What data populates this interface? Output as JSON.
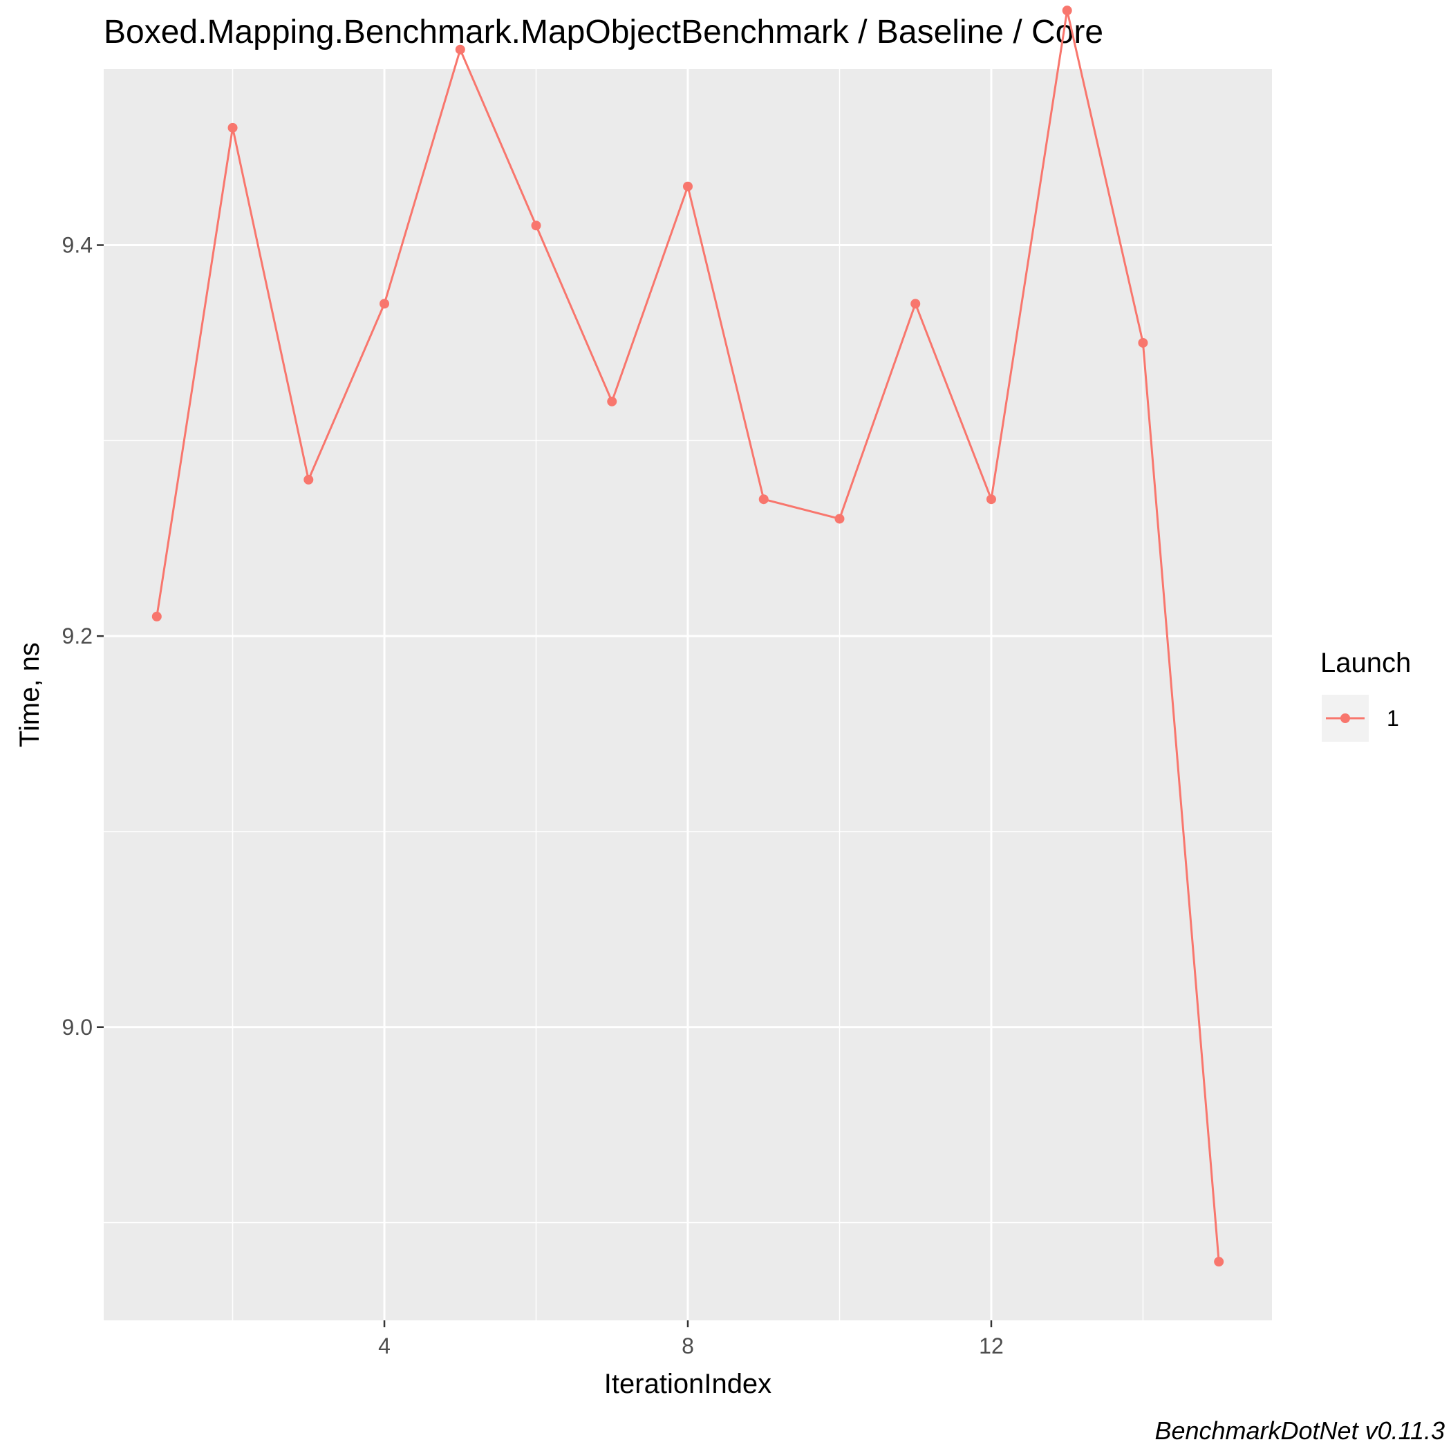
{
  "chart_data": {
    "type": "line",
    "title": "Boxed.Mapping.Benchmark.MapObjectBenchmark / Baseline / Core",
    "xlabel": "IterationIndex",
    "ylabel": "Time, ns",
    "xlim": [
      0.3,
      15.7
    ],
    "ylim": [
      8.85,
      9.49
    ],
    "x_ticks": [
      4,
      8,
      12
    ],
    "x_tick_labels": [
      "4",
      "8",
      "12"
    ],
    "x_minor_ticks": [
      2,
      6,
      10,
      14
    ],
    "y_ticks": [
      9.0,
      9.2,
      9.4
    ],
    "y_tick_labels": [
      "9.0",
      "9.2",
      "9.4"
    ],
    "y_minor_ticks": [
      8.9,
      9.1,
      9.3,
      9.5
    ],
    "grid": true,
    "legend": {
      "title": "Launch",
      "position": "right"
    },
    "series": [
      {
        "name": "1",
        "color": "#f8766d",
        "x": [
          1,
          2,
          3,
          4,
          5,
          6,
          7,
          8,
          9,
          10,
          11,
          12,
          13,
          14,
          15
        ],
        "values": [
          9.21,
          9.46,
          9.28,
          9.37,
          9.5,
          9.41,
          9.32,
          9.43,
          9.27,
          9.26,
          9.37,
          9.27,
          9.52,
          9.35,
          8.88
        ]
      }
    ],
    "caption": "BenchmarkDotNet v0.11.3"
  },
  "colors": {
    "panel_background": "#ebebeb",
    "grid": "#ffffff",
    "legend_key_background": "#f2f2f2"
  }
}
